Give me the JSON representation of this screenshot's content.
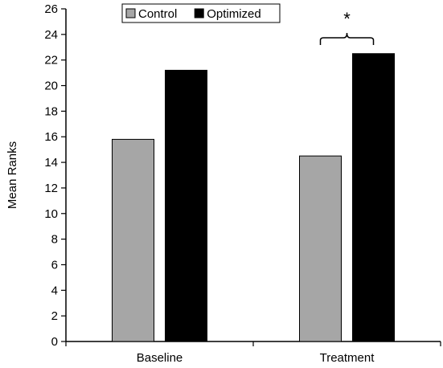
{
  "chart_data": {
    "type": "bar",
    "categories": [
      "Baseline",
      "Treatment"
    ],
    "series": [
      {
        "name": "Control",
        "values": [
          15.8,
          14.5
        ],
        "color": "#a6a6a6"
      },
      {
        "name": "Optimized",
        "values": [
          21.2,
          22.5
        ],
        "color": "#000000"
      }
    ],
    "ylabel": "Mean Ranks",
    "xlabel": "",
    "ylim": [
      0,
      26
    ],
    "yticks": [
      0,
      2,
      4,
      6,
      8,
      10,
      12,
      14,
      16,
      18,
      20,
      22,
      24,
      26
    ],
    "grid": false,
    "legend_position": "top-left",
    "annotations": [
      {
        "text": "*",
        "category": "Treatment",
        "type": "significance-bracket"
      }
    ]
  }
}
